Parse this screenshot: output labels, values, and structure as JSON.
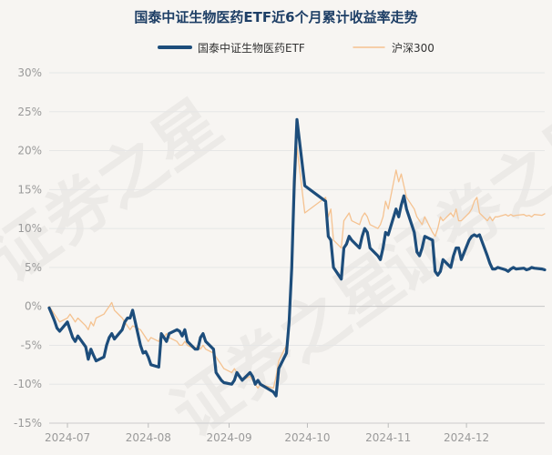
{
  "watermark": "证券之星",
  "colors": {
    "background": "#f7f5f2",
    "etf_line": "#1d4d7b",
    "index_line": "#f5c290",
    "title": "#1e3f66",
    "axis_text": "#9a9a9a",
    "grid": "#e6e6e6",
    "zero_line": "#c6c6c6"
  },
  "chart_data": {
    "type": "line",
    "title": "国泰中证生物医药ETF近6个月累计收益率走势",
    "xlabel": "",
    "ylabel": "",
    "ylim": [
      -15,
      30
    ],
    "yticks": [
      -15,
      -10,
      -5,
      0,
      5,
      10,
      15,
      20,
      25,
      30
    ],
    "ytick_labels": [
      "-15%",
      "-10%",
      "-5%",
      "0%",
      "5%",
      "10%",
      "15%",
      "20%",
      "25%",
      "30%"
    ],
    "xlim": [
      "2024-06-24",
      "2024-12-31"
    ],
    "xtick_dates": [
      "2024-07-01",
      "2024-08-01",
      "2024-09-01",
      "2024-10-01",
      "2024-11-01",
      "2024-12-01"
    ],
    "xtick_labels": [
      "2024-07",
      "2024-08",
      "2024-09",
      "2024-10",
      "2024-11",
      "2024-12"
    ],
    "grid": true,
    "legend_position": "top-center",
    "dates": [
      "2024-06-24",
      "2024-06-25",
      "2024-06-26",
      "2024-06-27",
      "2024-06-28",
      "2024-07-01",
      "2024-07-02",
      "2024-07-03",
      "2024-07-04",
      "2024-07-05",
      "2024-07-08",
      "2024-07-09",
      "2024-07-10",
      "2024-07-11",
      "2024-07-12",
      "2024-07-15",
      "2024-07-16",
      "2024-07-17",
      "2024-07-18",
      "2024-07-19",
      "2024-07-22",
      "2024-07-23",
      "2024-07-24",
      "2024-07-25",
      "2024-07-26",
      "2024-07-29",
      "2024-07-30",
      "2024-07-31",
      "2024-08-01",
      "2024-08-02",
      "2024-08-05",
      "2024-08-06",
      "2024-08-07",
      "2024-08-08",
      "2024-08-09",
      "2024-08-12",
      "2024-08-13",
      "2024-08-14",
      "2024-08-15",
      "2024-08-16",
      "2024-08-19",
      "2024-08-20",
      "2024-08-21",
      "2024-08-22",
      "2024-08-23",
      "2024-08-26",
      "2024-08-27",
      "2024-08-28",
      "2024-08-29",
      "2024-08-30",
      "2024-09-02",
      "2024-09-03",
      "2024-09-04",
      "2024-09-05",
      "2024-09-06",
      "2024-09-09",
      "2024-09-10",
      "2024-09-11",
      "2024-09-12",
      "2024-09-13",
      "2024-09-18",
      "2024-09-19",
      "2024-09-20",
      "2024-09-23",
      "2024-09-24",
      "2024-09-25",
      "2024-09-26",
      "2024-09-27",
      "2024-09-30",
      "2024-10-08",
      "2024-10-09",
      "2024-10-10",
      "2024-10-11",
      "2024-10-14",
      "2024-10-15",
      "2024-10-16",
      "2024-10-17",
      "2024-10-18",
      "2024-10-21",
      "2024-10-22",
      "2024-10-23",
      "2024-10-24",
      "2024-10-25",
      "2024-10-28",
      "2024-10-29",
      "2024-10-30",
      "2024-10-31",
      "2024-11-01",
      "2024-11-04",
      "2024-11-05",
      "2024-11-06",
      "2024-11-07",
      "2024-11-08",
      "2024-11-11",
      "2024-11-12",
      "2024-11-13",
      "2024-11-14",
      "2024-11-15",
      "2024-11-18",
      "2024-11-19",
      "2024-11-20",
      "2024-11-21",
      "2024-11-22",
      "2024-11-25",
      "2024-11-26",
      "2024-11-27",
      "2024-11-28",
      "2024-11-29",
      "2024-12-02",
      "2024-12-03",
      "2024-12-04",
      "2024-12-05",
      "2024-12-06",
      "2024-12-09",
      "2024-12-10",
      "2024-12-11",
      "2024-12-12",
      "2024-12-13",
      "2024-12-16",
      "2024-12-17",
      "2024-12-18",
      "2024-12-19",
      "2024-12-20",
      "2024-12-23",
      "2024-12-24",
      "2024-12-25",
      "2024-12-26",
      "2024-12-27",
      "2024-12-30",
      "2024-12-31"
    ],
    "series": [
      {
        "name": "国泰中证生物医药ETF",
        "values": [
          -0.2,
          -1.0,
          -1.8,
          -2.8,
          -3.2,
          -2.0,
          -3.0,
          -4.0,
          -4.5,
          -3.8,
          -5.2,
          -6.8,
          -5.5,
          -6.3,
          -7.0,
          -6.5,
          -5.0,
          -4.0,
          -3.5,
          -4.2,
          -3.0,
          -2.0,
          -1.5,
          -1.5,
          -0.5,
          -5.0,
          -6.0,
          -5.8,
          -6.5,
          -7.5,
          -7.8,
          -3.5,
          -4.0,
          -4.5,
          -3.5,
          -3.0,
          -3.2,
          -3.8,
          -3.0,
          -4.5,
          -5.5,
          -5.5,
          -4.0,
          -3.5,
          -4.5,
          -5.5,
          -8.5,
          -9.0,
          -9.5,
          -9.8,
          -10.0,
          -9.5,
          -8.5,
          -9.0,
          -9.5,
          -8.5,
          -9.0,
          -10.0,
          -9.5,
          -10.0,
          -11.0,
          -11.5,
          -8.0,
          -6.0,
          -2.0,
          5.0,
          16.0,
          24.0,
          15.5,
          13.5,
          9.0,
          8.5,
          5.0,
          3.5,
          7.5,
          8.0,
          9.0,
          8.5,
          7.5,
          9.0,
          10.0,
          9.5,
          7.5,
          6.5,
          6.0,
          7.5,
          9.5,
          9.2,
          12.5,
          11.5,
          13.0,
          14.2,
          12.5,
          9.5,
          7.0,
          6.5,
          7.5,
          9.0,
          8.5,
          4.5,
          4.0,
          4.5,
          6.0,
          5.0,
          6.5,
          7.5,
          7.5,
          6.0,
          8.5,
          9.0,
          9.2,
          9.0,
          9.2,
          6.5,
          5.5,
          4.8,
          4.8,
          5.0,
          4.7,
          4.5,
          4.8,
          5.0,
          4.8,
          4.9,
          4.7,
          4.8,
          5.0,
          4.9,
          4.8,
          4.7
        ]
      },
      {
        "name": "沪深300",
        "values": [
          0.0,
          -0.5,
          -1.0,
          -1.5,
          -2.0,
          -1.5,
          -1.0,
          -1.5,
          -2.0,
          -1.5,
          -2.5,
          -3.0,
          -2.0,
          -2.5,
          -1.5,
          -1.0,
          -0.5,
          0.0,
          0.5,
          -0.5,
          -1.5,
          -2.0,
          -2.5,
          -3.0,
          -2.5,
          -3.0,
          -3.5,
          -4.0,
          -4.5,
          -4.0,
          -4.5,
          -3.5,
          -4.0,
          -3.5,
          -4.0,
          -4.5,
          -5.0,
          -5.0,
          -4.5,
          -5.0,
          -5.5,
          -5.0,
          -5.5,
          -5.0,
          -5.5,
          -6.0,
          -6.5,
          -7.0,
          -7.5,
          -8.0,
          -8.5,
          -8.0,
          -8.5,
          -9.0,
          -9.5,
          -9.0,
          -9.5,
          -10.0,
          -10.5,
          -10.0,
          -10.5,
          -9.0,
          -7.0,
          -5.0,
          -2.0,
          4.0,
          13.0,
          20.5,
          12.0,
          14.0,
          11.5,
          12.5,
          8.5,
          7.5,
          11.0,
          11.5,
          12.0,
          11.0,
          10.5,
          11.5,
          12.0,
          11.5,
          10.5,
          10.0,
          10.5,
          11.5,
          13.5,
          12.5,
          17.5,
          16.0,
          17.0,
          15.5,
          14.0,
          12.5,
          11.5,
          11.0,
          10.5,
          11.5,
          9.5,
          9.0,
          10.0,
          11.5,
          11.0,
          12.0,
          11.5,
          12.5,
          11.0,
          11.0,
          12.0,
          12.5,
          13.5,
          14.0,
          12.0,
          11.0,
          11.5,
          11.0,
          11.5,
          11.5,
          11.8,
          11.6,
          11.8,
          11.6,
          11.7,
          11.8,
          11.6,
          11.7,
          11.5,
          11.8,
          11.7,
          11.9
        ]
      }
    ]
  }
}
